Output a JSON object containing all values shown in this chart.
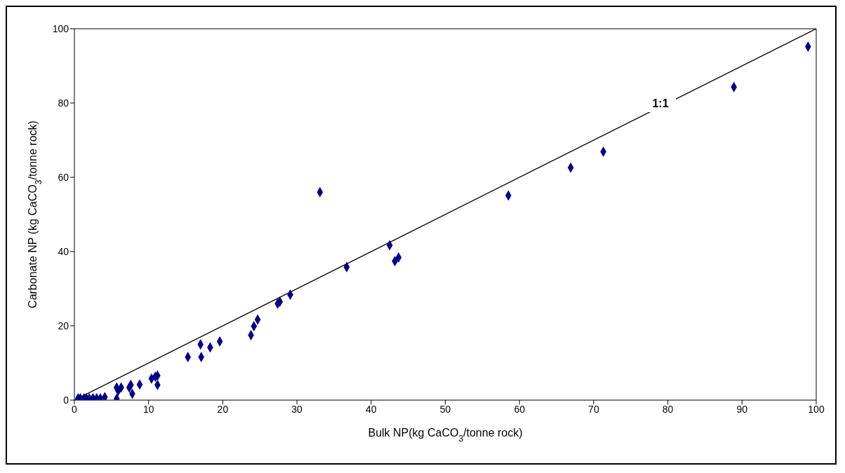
{
  "chart_data": {
    "type": "scatter",
    "xlabel": "Bulk NP(kg CaCO$_{3}$/tonne rock)",
    "ylabel": "Carbonate NP (kg CaCO$_{3}$/tonne rock)",
    "xlim": [
      0,
      100
    ],
    "ylim": [
      0,
      100
    ],
    "xticks": [
      0,
      10,
      20,
      30,
      40,
      50,
      60,
      70,
      80,
      90,
      100
    ],
    "yticks": [
      0,
      20,
      40,
      60,
      80,
      100
    ],
    "annotations": [
      {
        "text": "1:1",
        "x": 79,
        "y": 80
      }
    ],
    "series": [
      {
        "marker": "diamond",
        "color": "#000080",
        "x": [
          0.5,
          0.8,
          1.3,
          1.6,
          2.0,
          2.5,
          3.0,
          3.5,
          4.1,
          5.7,
          5.7,
          5.9,
          6.3,
          7.4,
          7.6,
          7.8,
          8.8,
          10.4,
          10.9,
          11.2,
          11.2,
          15.3,
          17.0,
          17.1,
          18.3,
          19.6,
          23.8,
          24.2,
          24.7,
          27.4,
          27.7,
          29.1,
          33.1,
          36.7,
          42.5,
          43.2,
          43.7,
          58.5,
          66.9,
          71.3,
          88.9,
          98.9
        ],
        "values": [
          0.5,
          0.5,
          0.5,
          0.5,
          0.5,
          0.5,
          0.5,
          0.5,
          0.8,
          0.4,
          3.4,
          2.5,
          3.4,
          3.4,
          4.1,
          1.7,
          4.2,
          5.8,
          6.3,
          6.6,
          4.1,
          11.6,
          15.0,
          11.6,
          14.2,
          15.8,
          17.5,
          19.9,
          21.7,
          26.0,
          26.5,
          28.4,
          56.0,
          35.8,
          41.7,
          37.4,
          38.4,
          55.1,
          62.6,
          66.9,
          84.3,
          95.2
        ]
      },
      {
        "type": "line",
        "color": "#000000",
        "x": [
          0,
          100
        ],
        "values": [
          0,
          100
        ]
      }
    ]
  }
}
